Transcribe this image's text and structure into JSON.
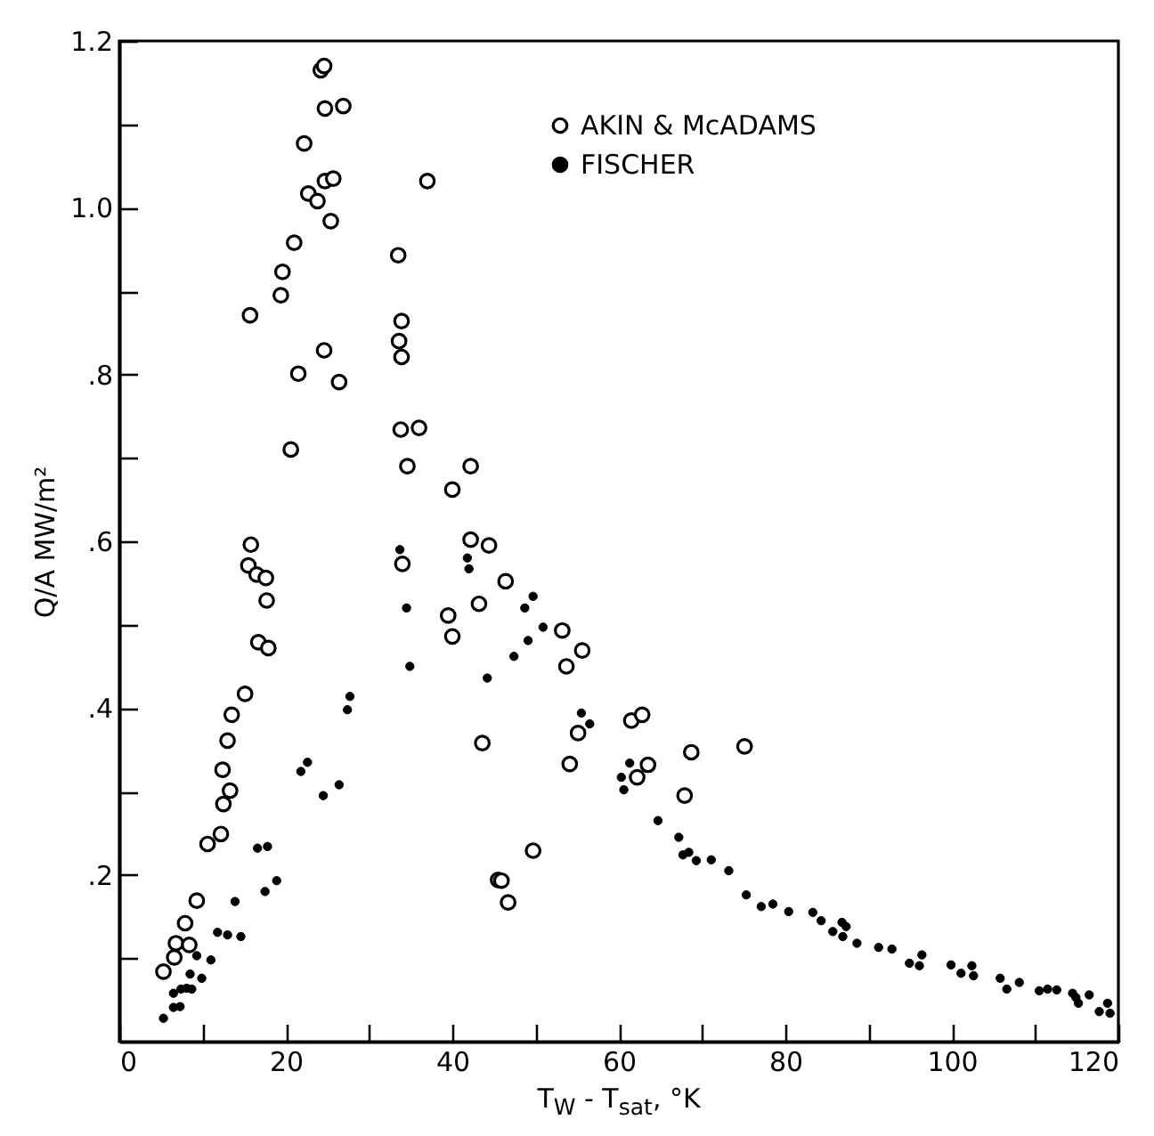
{
  "chart_data": {
    "type": "scatter",
    "xlabel": "T$_{W}$ - T$_{sat}$, °K",
    "ylabel": "Q/A   MW/m²",
    "xlim": [
      0,
      120
    ],
    "ylim": [
      0,
      1.2
    ],
    "xticks": [
      0,
      {
        "value": 10,
        "label": null
      },
      20,
      {
        "value": 30,
        "label": null
      },
      40,
      {
        "value": 50,
        "label": null
      },
      60,
      {
        "value": 70,
        "label": null
      },
      80,
      {
        "value": 90,
        "label": null
      },
      100,
      {
        "value": 110,
        "label": null
      },
      120
    ],
    "yticks": [
      {
        "value": 0.1,
        "label": null
      },
      {
        "value": 0.2,
        "label": ".2"
      },
      {
        "value": 0.3,
        "label": null
      },
      {
        "value": 0.4,
        "label": ".4"
      },
      {
        "value": 0.5,
        "label": null
      },
      {
        "value": 0.6,
        "label": ".6"
      },
      {
        "value": 0.7,
        "label": null
      },
      {
        "value": 0.8,
        "label": ".8"
      },
      {
        "value": 0.9,
        "label": null
      },
      {
        "value": 1.0,
        "label": "1.0"
      },
      {
        "value": 1.1,
        "label": null
      },
      {
        "value": 1.2,
        "label": "1.2"
      }
    ],
    "grid": false,
    "legend": "top right",
    "marker": "circle",
    "series": [
      {
        "name": "AKIN & McADAMS",
        "color": "#000000",
        "x": [
          24.2,
          24.6,
          24.7,
          26.9,
          22.2,
          24.7,
          25.7,
          37.0,
          22.7,
          23.8,
          25.4,
          21.0,
          33.5,
          19.6,
          19.4,
          15.7,
          33.9,
          33.6,
          33.9,
          24.6,
          21.5,
          26.4,
          33.8,
          36.0,
          20.6,
          34.6,
          42.2,
          40.0,
          15.8,
          15.5,
          16.5,
          17.6,
          34.0,
          42.2,
          44.4,
          17.7,
          43.2,
          16.7,
          17.9,
          39.5,
          40.0,
          43.6,
          15.1,
          13.5,
          13.0,
          12.4,
          13.3,
          12.5,
          12.2,
          10.6,
          45.5,
          9.3,
          7.9,
          6.8,
          8.4,
          6.6,
          5.3,
          46.4,
          53.2,
          55.6,
          53.7,
          55.1,
          54.1,
          61.5,
          62.8,
          63.5,
          62.2,
          68.7,
          75.1,
          67.9,
          49.7,
          45.9,
          46.7
        ],
        "values": [
          1.165,
          1.17,
          1.119,
          1.122,
          1.077,
          1.032,
          1.035,
          1.032,
          1.017,
          1.008,
          0.984,
          0.958,
          0.943,
          0.923,
          0.895,
          0.871,
          0.864,
          0.84,
          0.821,
          0.829,
          0.801,
          0.791,
          0.734,
          0.736,
          0.71,
          0.69,
          0.69,
          0.662,
          0.596,
          0.571,
          0.56,
          0.556,
          0.573,
          0.602,
          0.595,
          0.529,
          0.525,
          0.479,
          0.472,
          0.511,
          0.486,
          0.358,
          0.417,
          0.392,
          0.361,
          0.326,
          0.301,
          0.285,
          0.249,
          0.237,
          0.194,
          0.169,
          0.142,
          0.118,
          0.116,
          0.101,
          0.084,
          0.552,
          0.493,
          0.469,
          0.45,
          0.37,
          0.333,
          0.385,
          0.392,
          0.332,
          0.317,
          0.347,
          0.354,
          0.295,
          0.229,
          0.193,
          0.167
        ]
      },
      {
        "name": "FISCHER",
        "color": "#000000",
        "x": [
          33.7,
          41.8,
          42.0,
          34.5,
          34.9,
          44.2,
          27.7,
          27.4,
          22.6,
          21.8,
          26.4,
          24.5,
          16.6,
          17.8,
          18.9,
          17.5,
          13.9,
          11.8,
          13.0,
          14.6,
          9.3,
          11.0,
          8.5,
          9.9,
          6.5,
          7.4,
          8.1,
          8.7,
          6.5,
          7.3,
          5.3,
          49.7,
          48.7,
          50.9,
          49.1,
          47.4,
          55.5,
          56.5,
          61.3,
          60.3,
          60.6,
          64.7,
          67.2,
          67.7,
          68.4,
          69.3,
          71.1,
          73.2,
          75.3,
          77.1,
          78.5,
          80.4,
          83.3,
          84.3,
          85.7,
          86.8,
          87.3,
          86.9,
          88.6,
          91.2,
          92.8,
          94.9,
          96.1,
          96.4,
          99.9,
          101.1,
          102.4,
          102.6,
          105.8,
          106.6,
          108.1,
          110.5,
          111.5,
          112.6,
          114.5,
          114.9,
          115.2,
          116.5,
          117.7,
          118.7,
          119.0
        ],
        "values": [
          0.59,
          0.58,
          0.567,
          0.52,
          0.45,
          0.436,
          0.414,
          0.398,
          0.335,
          0.324,
          0.308,
          0.295,
          0.232,
          0.234,
          0.193,
          0.18,
          0.168,
          0.131,
          0.128,
          0.126,
          0.103,
          0.098,
          0.081,
          0.076,
          0.058,
          0.063,
          0.064,
          0.063,
          0.041,
          0.042,
          0.028,
          0.534,
          0.52,
          0.497,
          0.481,
          0.462,
          0.394,
          0.381,
          0.334,
          0.317,
          0.302,
          0.265,
          0.245,
          0.224,
          0.227,
          0.217,
          0.218,
          0.205,
          0.176,
          0.162,
          0.165,
          0.156,
          0.155,
          0.145,
          0.132,
          0.143,
          0.138,
          0.126,
          0.118,
          0.113,
          0.111,
          0.094,
          0.091,
          0.104,
          0.092,
          0.082,
          0.091,
          0.079,
          0.076,
          0.063,
          0.071,
          0.061,
          0.063,
          0.062,
          0.058,
          0.053,
          0.046,
          0.056,
          0.036,
          0.046,
          0.034
        ]
      }
    ]
  }
}
